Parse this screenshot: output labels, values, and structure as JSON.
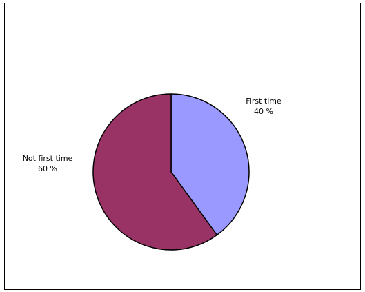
{
  "chart_data": {
    "type": "pie",
    "slices": [
      {
        "label": "First time",
        "value": 40,
        "value_label": "40 %",
        "color": "#9999ff"
      },
      {
        "label": "Not first time",
        "value": 60,
        "value_label": "60 %",
        "color": "#993366"
      }
    ],
    "start": "12 o'clock",
    "direction": "clockwise",
    "legend": "none",
    "outline_color": "#000000"
  }
}
